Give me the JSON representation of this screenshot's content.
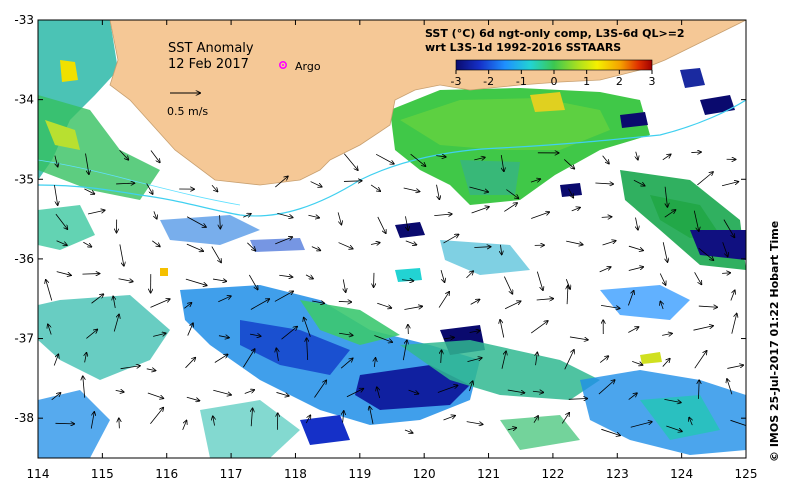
{
  "map": {
    "title": "SST Anomaly",
    "date": "12 Feb 2017",
    "argo_label": "Argo",
    "arrow_label": "0.5 m/s",
    "product_line1": "SST (°C) 6d ngt-only comp, L3S-6d QL>=2",
    "product_line2": "wrt L3S-1d 1992-2016 SSTAARS",
    "credit": "©  IMOS 25-Jul-2017 01:22 Hobart Time",
    "lon_range": [
      114,
      125
    ],
    "lat_range": [
      -38.5,
      -33
    ],
    "x_ticks": [
      "114",
      "115",
      "116",
      "117",
      "118",
      "119",
      "120",
      "121",
      "122",
      "123",
      "124",
      "125"
    ],
    "y_ticks": [
      "-33",
      "-34",
      "-35",
      "-36",
      "-37",
      "-38"
    ],
    "colorbar": {
      "ticks": [
        "-3",
        "-2",
        "-1",
        "0",
        "1",
        "2",
        "3"
      ],
      "range": [
        -3,
        3
      ],
      "colors": [
        "#0a0a6e",
        "#1530c8",
        "#1e90ff",
        "#22d3d3",
        "#3cc850",
        "#a8e020",
        "#f5f000",
        "#f5a000",
        "#e03000",
        "#a00000"
      ]
    },
    "colors": {
      "land": "#f5c896",
      "argo_marker": "#ff00ff",
      "coastline_contour": "#40d0f0"
    }
  }
}
